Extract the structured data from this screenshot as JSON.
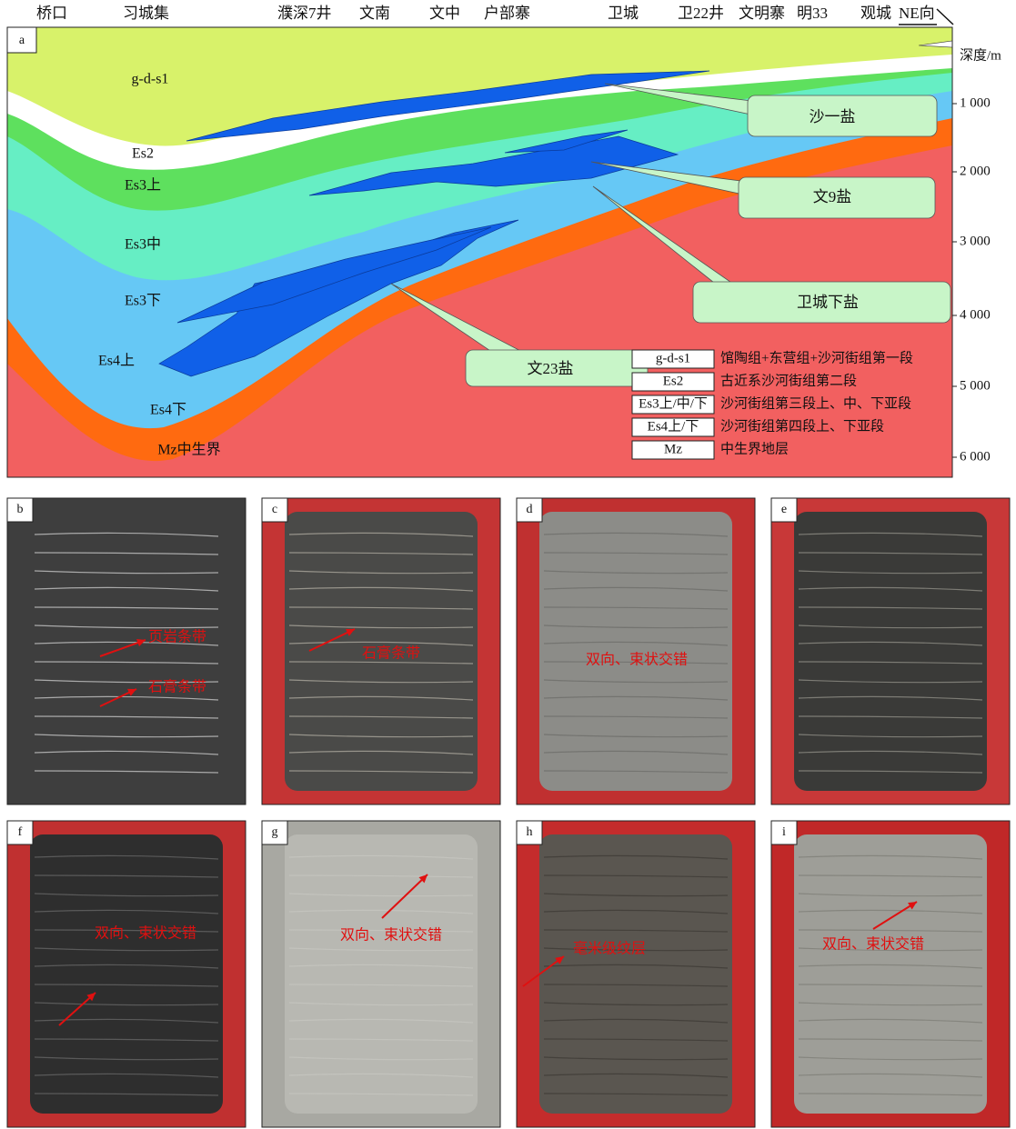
{
  "wells": [
    "桥口",
    "习城集",
    "濮深7井",
    "文南",
    "文中",
    "户部寨",
    "卫城",
    "卫22井",
    "文明寨",
    "明33",
    "观城",
    "NE向"
  ],
  "panel_a": {
    "label": "a",
    "layers": [
      "g-d-s1",
      "Es2",
      "Es3上",
      "Es3中",
      "Es3下",
      "Es4上",
      "Es4下",
      "Mz中生界"
    ],
    "callouts": [
      "沙一盐",
      "文9盐",
      "卫城下盐",
      "文23盐"
    ],
    "depth_axis": {
      "title": "深度/m",
      "ticks": [
        "1 000",
        "2 000",
        "3 000",
        "4 000",
        "5 000",
        "6 000"
      ]
    },
    "legend": [
      {
        "code": "g-d-s1",
        "desc": "馆陶组+东营组+沙河街组第一段"
      },
      {
        "code": "Es2",
        "desc": "古近系沙河街组第二段"
      },
      {
        "code": "Es3上/中/下",
        "desc": "沙河街组第三段上、中、下亚段"
      },
      {
        "code": "Es4上/下",
        "desc": "沙河街组第四段上、下亚段"
      },
      {
        "code": "Mz",
        "desc": "中生界地层"
      }
    ]
  },
  "photos": [
    {
      "label": "b",
      "annotations": [
        "页岩条带",
        "石膏条带"
      ]
    },
    {
      "label": "c",
      "annotations": [
        "石膏条带"
      ]
    },
    {
      "label": "d",
      "annotations": [
        "双向、束状交错"
      ]
    },
    {
      "label": "e",
      "annotations": []
    },
    {
      "label": "f",
      "annotations": [
        "双向、束状交错"
      ]
    },
    {
      "label": "g",
      "annotations": [
        "双向、束状交错"
      ]
    },
    {
      "label": "h",
      "annotations": [
        "毫米级纹层"
      ]
    },
    {
      "label": "i",
      "annotations": [
        "双向、束状交错"
      ]
    }
  ]
}
